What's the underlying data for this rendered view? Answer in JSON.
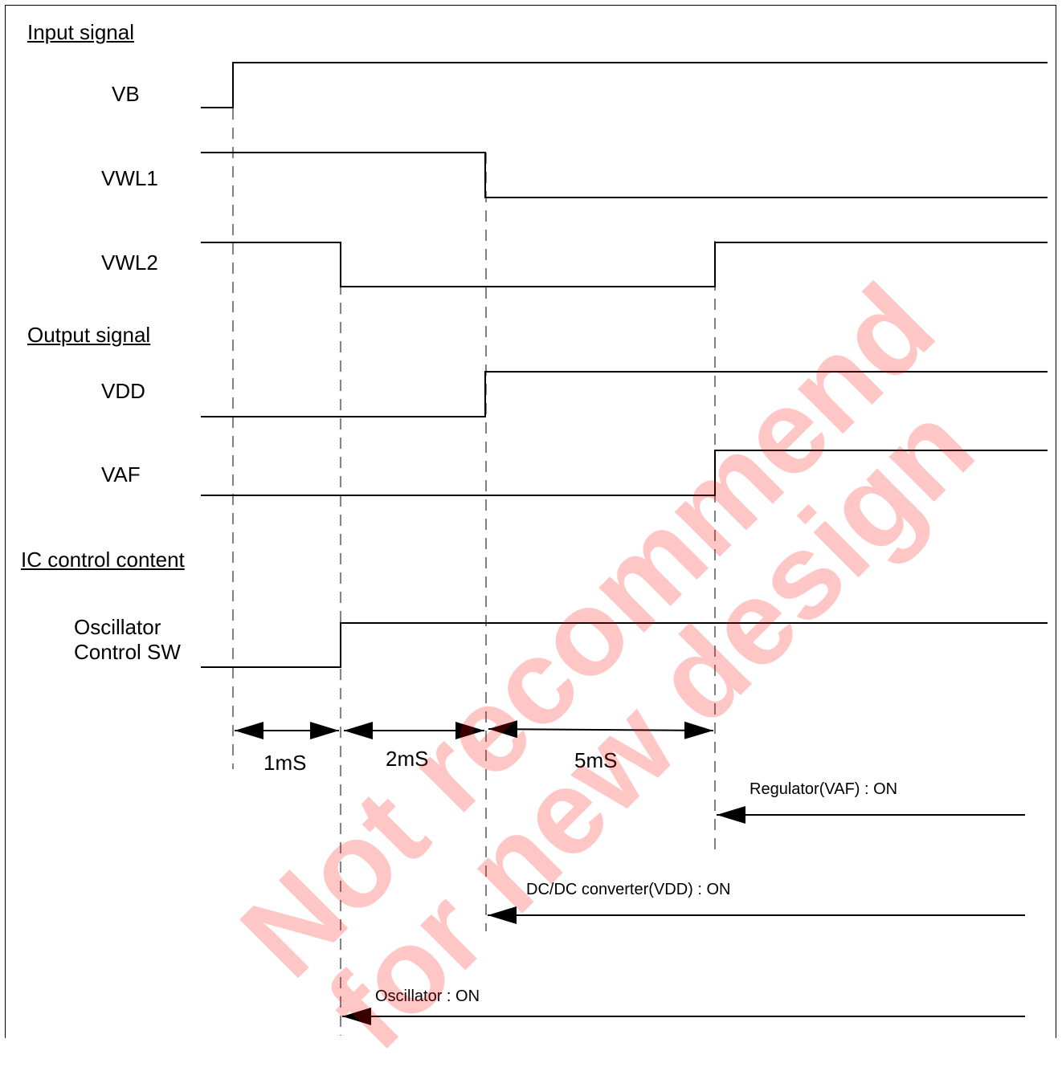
{
  "sections": {
    "input": "Input signal",
    "output": "Output signal",
    "ic": "IC control content"
  },
  "signals": {
    "vb": "VB",
    "vwl1": "VWL1",
    "vwl2": "VWL2",
    "vdd": "VDD",
    "vaf": "VAF",
    "osc_line1": "Oscillator",
    "osc_line2": "Control SW"
  },
  "intervals": {
    "t1": "1mS",
    "t2": "2mS",
    "t3": "5mS"
  },
  "events": {
    "regulator": "Regulator(VAF) : ON",
    "dcdc": "DC/DC converter(VDD) : ON",
    "oscillator": "Oscillator : ON"
  },
  "watermark": {
    "line1": "Not recommend",
    "line2": "for new design",
    "color": "#ff0000"
  }
}
